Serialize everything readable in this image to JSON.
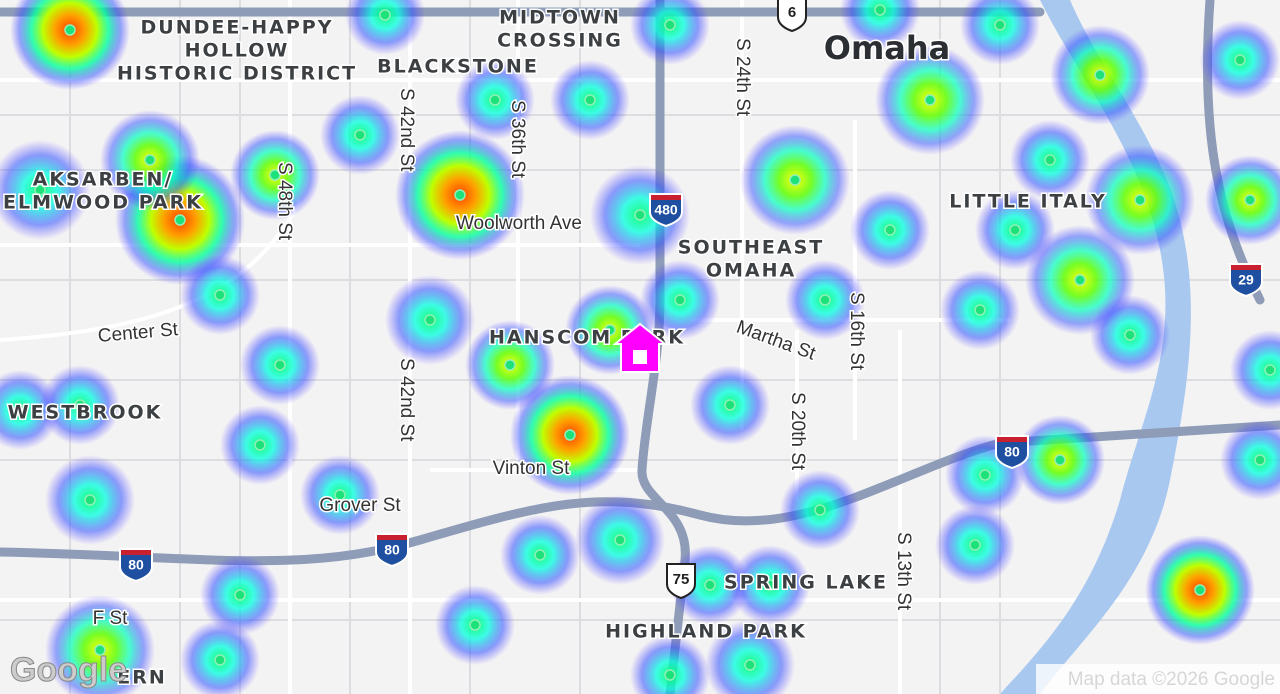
{
  "map": {
    "areas": [
      {
        "lines": [
          "DUNDEE-HAPPY",
          "HOLLOW",
          "HISTORIC DISTRICT"
        ]
      },
      {
        "lines": [
          "MIDTOWN",
          "CROSSING"
        ]
      },
      {
        "lines": [
          "BLACKSTONE"
        ]
      },
      {
        "lines": [
          "AKSARBEN/",
          "ELMWOOD PARK"
        ]
      },
      {
        "lines": [
          "SOUTHEAST",
          "OMAHA"
        ]
      },
      {
        "lines": [
          "LITTLE ITALY"
        ]
      },
      {
        "lines": [
          "HANSCOM PARK"
        ]
      },
      {
        "lines": [
          "WESTBROOK"
        ]
      },
      {
        "lines": [
          "SPRING LAKE"
        ]
      },
      {
        "lines": [
          "HIGHLAND PARK"
        ]
      },
      {
        "lines": [
          "ERN"
        ]
      }
    ],
    "city": "Omaha",
    "streets": [
      "S 42nd St",
      "S 36th St",
      "S 48th St",
      "S 24th St",
      "S 16th St",
      "S 20th St",
      "S 13th St",
      "S 42nd St",
      "Woolworth Ave",
      "Martha St",
      "Center St",
      "Vinton St",
      "Grover St",
      "F St"
    ],
    "shields": [
      "6",
      "480",
      "29",
      "80",
      "80",
      "80",
      "75"
    ],
    "attribution": "Map data ©2026 Google",
    "logo": "Google"
  }
}
